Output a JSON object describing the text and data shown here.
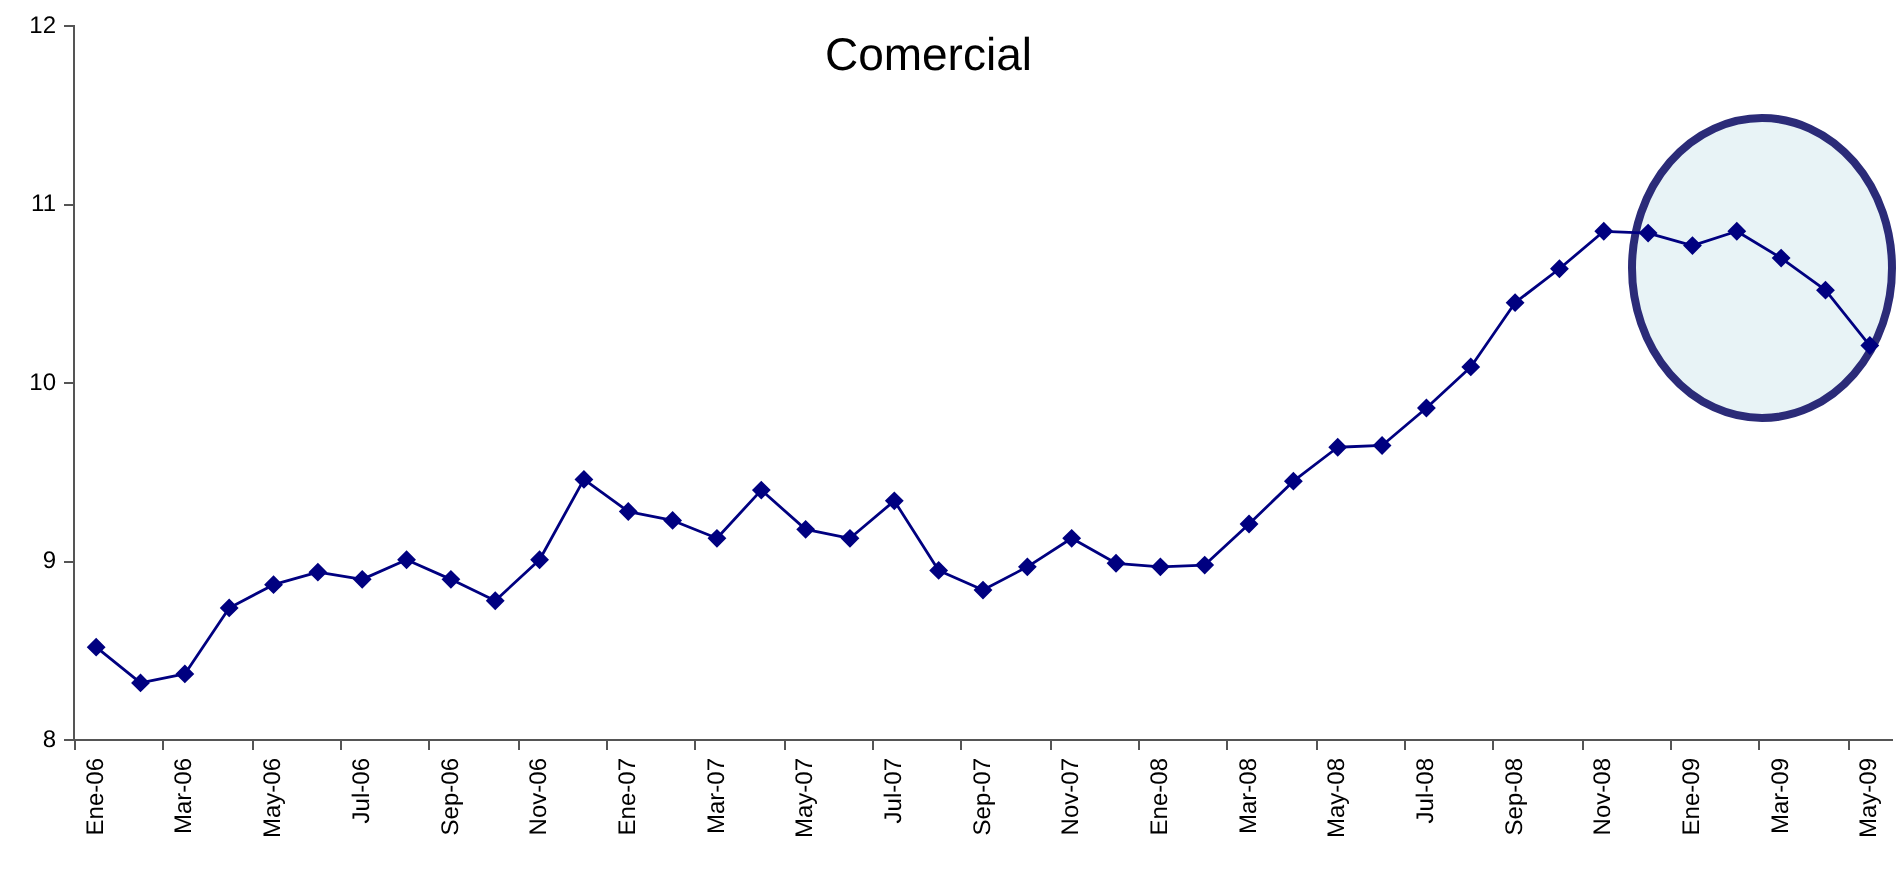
{
  "chart_data": {
    "type": "line",
    "title": "Comercial",
    "categories": [
      "Ene-06",
      null,
      "Mar-06",
      null,
      "May-06",
      null,
      "Jul-06",
      null,
      "Sep-06",
      null,
      "Nov-06",
      null,
      "Ene-07",
      null,
      "Mar-07",
      null,
      "May-07",
      null,
      "Jul-07",
      null,
      "Sep-07",
      null,
      "Nov-07",
      null,
      "Ene-08",
      null,
      "Mar-08",
      null,
      "May-08",
      null,
      "Jul-08",
      null,
      "Sep-08",
      null,
      "Nov-08",
      null,
      "Ene-09",
      null,
      "Mar-09",
      null,
      "May-09"
    ],
    "series": [
      {
        "color": "#000080",
        "values": [
          8.52,
          8.32,
          8.37,
          8.74,
          8.87,
          8.94,
          8.9,
          9.01,
          8.9,
          8.78,
          9.01,
          9.46,
          9.28,
          9.23,
          9.13,
          9.4,
          9.18,
          9.13,
          9.34,
          8.95,
          8.84,
          8.97,
          9.13,
          8.99,
          8.97,
          8.98,
          9.21,
          9.45,
          9.64,
          9.65,
          9.86,
          10.09,
          10.45,
          10.64,
          10.85,
          10.84,
          10.77,
          10.85,
          10.7,
          10.52,
          10.21
        ]
      }
    ],
    "ylim": [
      8,
      12
    ],
    "yticks": [
      8,
      9,
      10,
      11,
      12
    ],
    "grid": false,
    "legend": false,
    "marker": "diamond",
    "line_style": "solid"
  }
}
